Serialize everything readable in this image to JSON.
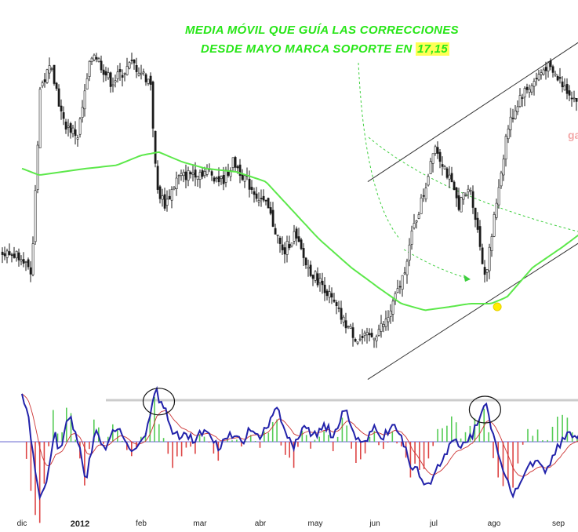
{
  "annotation": {
    "line1": "MEDIA MÓVIL QUE GUÍA LAS CORRECCIONES",
    "line2_prefix": "DESDE MAYO MARCA SOPORTE EN",
    "support_value": "17,15"
  },
  "watermark": "ga",
  "colors": {
    "moving_average": "#5ce84a",
    "annotation_text": "#27e617",
    "candles": "#1a1a1a",
    "channel_lines": "#333333",
    "oscillator_line": "#2222aa",
    "signal_line": "#cc3333",
    "histogram_positive": "#55cc55",
    "histogram_negative": "#dd4444",
    "support_marker": "#ffee00",
    "resistance_level": "#cccccc"
  },
  "chart_data": [
    {
      "type": "candlestick",
      "title": "",
      "x_ticks": [
        {
          "label": "dic",
          "bold": false
        },
        {
          "label": "2012",
          "bold": true
        },
        {
          "label": "feb",
          "bold": false
        },
        {
          "label": "mar",
          "bold": false
        },
        {
          "label": "abr",
          "bold": false
        },
        {
          "label": "may",
          "bold": false
        },
        {
          "label": "jun",
          "bold": false
        },
        {
          "label": "jul",
          "bold": false
        },
        {
          "label": "ago",
          "bold": false
        },
        {
          "label": "sep",
          "bold": false
        }
      ],
      "price_path": [
        {
          "m": 0.0,
          "p": 0.3
        },
        {
          "m": 0.15,
          "p": 0.22
        },
        {
          "m": 0.3,
          "p": 0.8
        },
        {
          "m": 0.5,
          "p": 0.88
        },
        {
          "m": 0.7,
          "p": 0.7
        },
        {
          "m": 0.95,
          "p": 0.66
        },
        {
          "m": 1.2,
          "p": 0.92
        },
        {
          "m": 1.5,
          "p": 0.82
        },
        {
          "m": 1.85,
          "p": 0.88
        },
        {
          "m": 2.15,
          "p": 0.82
        },
        {
          "m": 2.25,
          "p": 0.5
        },
        {
          "m": 2.4,
          "p": 0.45
        },
        {
          "m": 2.6,
          "p": 0.53
        },
        {
          "m": 2.9,
          "p": 0.55
        },
        {
          "m": 3.15,
          "p": 0.55
        },
        {
          "m": 3.35,
          "p": 0.52
        },
        {
          "m": 3.55,
          "p": 0.58
        },
        {
          "m": 3.85,
          "p": 0.5
        },
        {
          "m": 4.15,
          "p": 0.43
        },
        {
          "m": 4.4,
          "p": 0.3
        },
        {
          "m": 4.6,
          "p": 0.36
        },
        {
          "m": 4.85,
          "p": 0.26
        },
        {
          "m": 5.15,
          "p": 0.2
        },
        {
          "m": 5.45,
          "p": 0.1
        },
        {
          "m": 5.7,
          "p": 0.04
        },
        {
          "m": 5.95,
          "p": 0.05
        },
        {
          "m": 6.2,
          "p": 0.1
        },
        {
          "m": 6.45,
          "p": 0.22
        },
        {
          "m": 6.65,
          "p": 0.38
        },
        {
          "m": 6.85,
          "p": 0.5
        },
        {
          "m": 7.0,
          "p": 0.64
        },
        {
          "m": 7.2,
          "p": 0.55
        },
        {
          "m": 7.4,
          "p": 0.45
        },
        {
          "m": 7.6,
          "p": 0.5
        },
        {
          "m": 7.85,
          "p": 0.23
        },
        {
          "m": 8.0,
          "p": 0.42
        },
        {
          "m": 8.2,
          "p": 0.68
        },
        {
          "m": 8.4,
          "p": 0.78
        },
        {
          "m": 8.6,
          "p": 0.82
        },
        {
          "m": 8.8,
          "p": 0.87
        },
        {
          "m": 9.05,
          "p": 0.82
        },
        {
          "m": 9.3,
          "p": 0.76
        },
        {
          "m": 9.6,
          "p": 0.76
        }
      ],
      "moving_average": [
        {
          "m": 0.0,
          "p": 0.56
        },
        {
          "m": 0.3,
          "p": 0.54
        },
        {
          "m": 0.7,
          "p": 0.55
        },
        {
          "m": 1.1,
          "p": 0.56
        },
        {
          "m": 1.6,
          "p": 0.57
        },
        {
          "m": 2.0,
          "p": 0.6
        },
        {
          "m": 2.3,
          "p": 0.61
        },
        {
          "m": 2.7,
          "p": 0.58
        },
        {
          "m": 3.1,
          "p": 0.56
        },
        {
          "m": 3.6,
          "p": 0.55
        },
        {
          "m": 4.1,
          "p": 0.52
        },
        {
          "m": 4.6,
          "p": 0.43
        },
        {
          "m": 5.1,
          "p": 0.34
        },
        {
          "m": 5.6,
          "p": 0.26
        },
        {
          "m": 6.05,
          "p": 0.2
        },
        {
          "m": 6.45,
          "p": 0.15
        },
        {
          "m": 6.85,
          "p": 0.13
        },
        {
          "m": 7.25,
          "p": 0.14
        },
        {
          "m": 7.6,
          "p": 0.15
        },
        {
          "m": 7.95,
          "p": 0.15
        },
        {
          "m": 8.2,
          "p": 0.17
        },
        {
          "m": 8.6,
          "p": 0.26
        },
        {
          "m": 9.05,
          "p": 0.32
        },
        {
          "m": 9.6,
          "p": 0.4
        }
      ],
      "channel_upper": [
        {
          "m": 5.88,
          "p": 0.52
        },
        {
          "m": 9.6,
          "p": 0.98
        }
      ],
      "channel_lower": [
        {
          "m": 5.88,
          "p": -0.08
        },
        {
          "m": 9.6,
          "p": 0.37
        }
      ],
      "support_point": {
        "m": 8.05,
        "p": 0.15
      }
    },
    {
      "type": "oscillator",
      "reference_level": 0.78,
      "highlighted_peaks": [
        {
          "m": 2.3,
          "v": 0.9
        },
        {
          "m": 7.85,
          "v": 0.75
        }
      ],
      "main_line": [
        {
          "m": 0.0,
          "v": 0.9
        },
        {
          "m": 0.1,
          "v": 0.6
        },
        {
          "m": 0.2,
          "v": -0.3
        },
        {
          "m": 0.3,
          "v": -1.1
        },
        {
          "m": 0.45,
          "v": -0.6
        },
        {
          "m": 0.55,
          "v": 0.2
        },
        {
          "m": 0.65,
          "v": -0.2
        },
        {
          "m": 0.8,
          "v": 0.5
        },
        {
          "m": 0.95,
          "v": 0.1
        },
        {
          "m": 1.1,
          "v": -0.7
        },
        {
          "m": 1.25,
          "v": 0.2
        },
        {
          "m": 1.4,
          "v": -0.1
        },
        {
          "m": 1.6,
          "v": 0.25
        },
        {
          "m": 1.75,
          "v": 0.05
        },
        {
          "m": 1.9,
          "v": -0.25
        },
        {
          "m": 2.05,
          "v": 0.1
        },
        {
          "m": 2.25,
          "v": 0.95
        },
        {
          "m": 2.4,
          "v": 0.6
        },
        {
          "m": 2.55,
          "v": 0.1
        },
        {
          "m": 2.7,
          "v": 0.15
        },
        {
          "m": 2.9,
          "v": 0.05
        },
        {
          "m": 3.1,
          "v": 0.25
        },
        {
          "m": 3.3,
          "v": -0.1
        },
        {
          "m": 3.5,
          "v": 0.2
        },
        {
          "m": 3.7,
          "v": -0.05
        },
        {
          "m": 3.85,
          "v": 0.3
        },
        {
          "m": 4.0,
          "v": 0.05
        },
        {
          "m": 4.15,
          "v": 0.35
        },
        {
          "m": 4.3,
          "v": 0.65
        },
        {
          "m": 4.45,
          "v": 0.15
        },
        {
          "m": 4.6,
          "v": -0.15
        },
        {
          "m": 4.8,
          "v": 0.3
        },
        {
          "m": 5.0,
          "v": 0.1
        },
        {
          "m": 5.15,
          "v": 0.35
        },
        {
          "m": 5.3,
          "v": 0.1
        },
        {
          "m": 5.5,
          "v": 0.62
        },
        {
          "m": 5.65,
          "v": 0.15
        },
        {
          "m": 5.8,
          "v": 0.0
        },
        {
          "m": 6.0,
          "v": 0.25
        },
        {
          "m": 6.15,
          "v": 0.1
        },
        {
          "m": 6.3,
          "v": 0.35
        },
        {
          "m": 6.45,
          "v": 0.05
        },
        {
          "m": 6.6,
          "v": -0.4
        },
        {
          "m": 6.75,
          "v": -0.6
        },
        {
          "m": 6.9,
          "v": -0.85
        },
        {
          "m": 7.05,
          "v": -0.55
        },
        {
          "m": 7.2,
          "v": -0.2
        },
        {
          "m": 7.35,
          "v": 0.05
        },
        {
          "m": 7.5,
          "v": -0.1
        },
        {
          "m": 7.65,
          "v": 0.15
        },
        {
          "m": 7.85,
          "v": 0.75
        },
        {
          "m": 8.0,
          "v": 0.1
        },
        {
          "m": 8.15,
          "v": -0.6
        },
        {
          "m": 8.3,
          "v": -0.95
        },
        {
          "m": 8.45,
          "v": -0.6
        },
        {
          "m": 8.6,
          "v": -0.4
        },
        {
          "m": 8.8,
          "v": -0.5
        },
        {
          "m": 9.0,
          "v": -0.1
        },
        {
          "m": 9.15,
          "v": 0.25
        },
        {
          "m": 9.3,
          "v": 0.05
        },
        {
          "m": 9.45,
          "v": 0.22
        },
        {
          "m": 9.6,
          "v": -0.15
        }
      ]
    }
  ]
}
